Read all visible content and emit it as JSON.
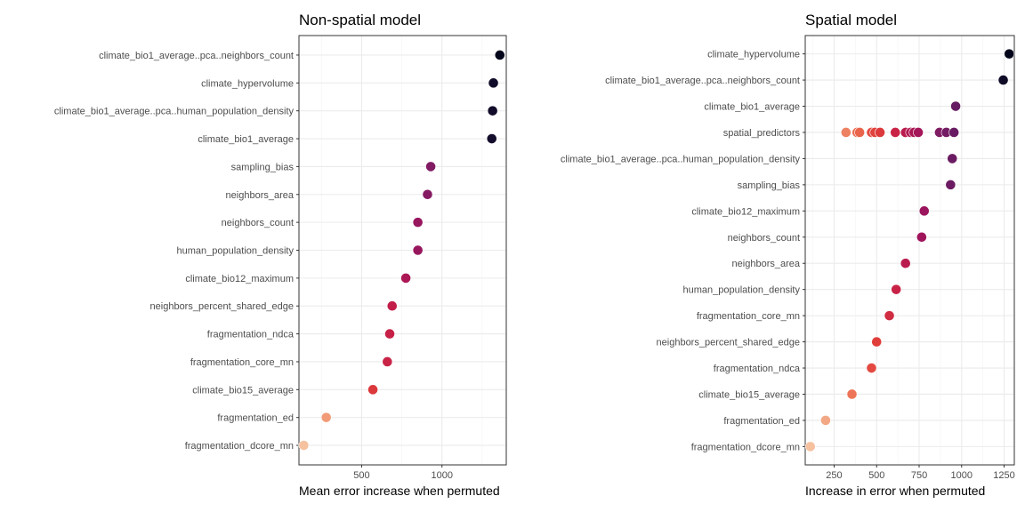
{
  "chart_data": [
    {
      "type": "scatter",
      "title": "Non-spatial model",
      "xlabel": "Mean error increase when permuted",
      "ylabel": "",
      "xlim": [
        110,
        1400
      ],
      "xticks": [
        500,
        1000
      ],
      "grid": true,
      "legend": "none",
      "categories": [
        "climate_bio1_average..pca..neighbors_count",
        "climate_hypervolume",
        "climate_bio1_average..pca..human_population_density",
        "climate_bio1_average",
        "sampling_bias",
        "neighbors_area",
        "neighbors_count",
        "human_population_density",
        "climate_bio12_maximum",
        "neighbors_percent_shared_edge",
        "fragmentation_ndca",
        "fragmentation_core_mn",
        "climate_bio15_average",
        "fragmentation_ed",
        "fragmentation_dcore_mn"
      ],
      "points": [
        {
          "category": "climate_bio1_average..pca..neighbors_count",
          "x": 1360
        },
        {
          "category": "climate_hypervolume",
          "x": 1320
        },
        {
          "category": "climate_bio1_average..pca..human_population_density",
          "x": 1315
        },
        {
          "category": "climate_bio1_average",
          "x": 1310
        },
        {
          "category": "sampling_bias",
          "x": 930
        },
        {
          "category": "neighbors_area",
          "x": 910
        },
        {
          "category": "neighbors_count",
          "x": 850
        },
        {
          "category": "human_population_density",
          "x": 850
        },
        {
          "category": "climate_bio12_maximum",
          "x": 775
        },
        {
          "category": "neighbors_percent_shared_edge",
          "x": 690
        },
        {
          "category": "fragmentation_ndca",
          "x": 675
        },
        {
          "category": "fragmentation_core_mn",
          "x": 660
        },
        {
          "category": "climate_bio15_average",
          "x": 570
        },
        {
          "category": "fragmentation_ed",
          "x": 280
        },
        {
          "category": "fragmentation_dcore_mn",
          "x": 140
        }
      ]
    },
    {
      "type": "scatter",
      "title": "Spatial model",
      "xlabel": "Increase in error when permuted",
      "ylabel": "",
      "xlim": [
        80,
        1310
      ],
      "xticks": [
        250,
        500,
        750,
        1000,
        1250
      ],
      "grid": true,
      "legend": "none",
      "categories": [
        "climate_hypervolume",
        "climate_bio1_average..pca..neighbors_count",
        "climate_bio1_average",
        "spatial_predictors",
        "climate_bio1_average..pca..human_population_density",
        "sampling_bias",
        "climate_bio12_maximum",
        "neighbors_count",
        "neighbors_area",
        "human_population_density",
        "fragmentation_core_mn",
        "neighbors_percent_shared_edge",
        "fragmentation_ndca",
        "climate_bio15_average",
        "fragmentation_ed",
        "fragmentation_dcore_mn"
      ],
      "points": [
        {
          "category": "climate_hypervolume",
          "x": 1280
        },
        {
          "category": "climate_bio1_average..pca..neighbors_count",
          "x": 1245
        },
        {
          "category": "climate_bio1_average",
          "x": 965
        },
        {
          "category": "spatial_predictors",
          "x": 320
        },
        {
          "category": "spatial_predictors",
          "x": 385
        },
        {
          "category": "spatial_predictors",
          "x": 400
        },
        {
          "category": "spatial_predictors",
          "x": 470
        },
        {
          "category": "spatial_predictors",
          "x": 490
        },
        {
          "category": "spatial_predictors",
          "x": 520
        },
        {
          "category": "spatial_predictors",
          "x": 610
        },
        {
          "category": "spatial_predictors",
          "x": 670
        },
        {
          "category": "spatial_predictors",
          "x": 700
        },
        {
          "category": "spatial_predictors",
          "x": 720
        },
        {
          "category": "spatial_predictors",
          "x": 745
        },
        {
          "category": "spatial_predictors",
          "x": 870
        },
        {
          "category": "spatial_predictors",
          "x": 910
        },
        {
          "category": "spatial_predictors",
          "x": 955
        },
        {
          "category": "climate_bio1_average..pca..human_population_density",
          "x": 945
        },
        {
          "category": "sampling_bias",
          "x": 935
        },
        {
          "category": "climate_bio12_maximum",
          "x": 780
        },
        {
          "category": "neighbors_count",
          "x": 765
        },
        {
          "category": "neighbors_area",
          "x": 670
        },
        {
          "category": "human_population_density",
          "x": 615
        },
        {
          "category": "fragmentation_core_mn",
          "x": 575
        },
        {
          "category": "neighbors_percent_shared_edge",
          "x": 500
        },
        {
          "category": "fragmentation_ndca",
          "x": 470
        },
        {
          "category": "climate_bio15_average",
          "x": 355
        },
        {
          "category": "fragmentation_ed",
          "x": 200
        },
        {
          "category": "fragmentation_dcore_mn",
          "x": 110
        }
      ]
    }
  ],
  "colors": {
    "palette": [
      "#f6c19f",
      "#f29d79",
      "#ec6f52",
      "#e03e3a",
      "#c51e48",
      "#a0145b",
      "#7a1d65",
      "#55185f",
      "#301a4a",
      "#03051a"
    ],
    "panel_border": "#333333",
    "grid": "#ebebeb",
    "background": "#ffffff"
  }
}
